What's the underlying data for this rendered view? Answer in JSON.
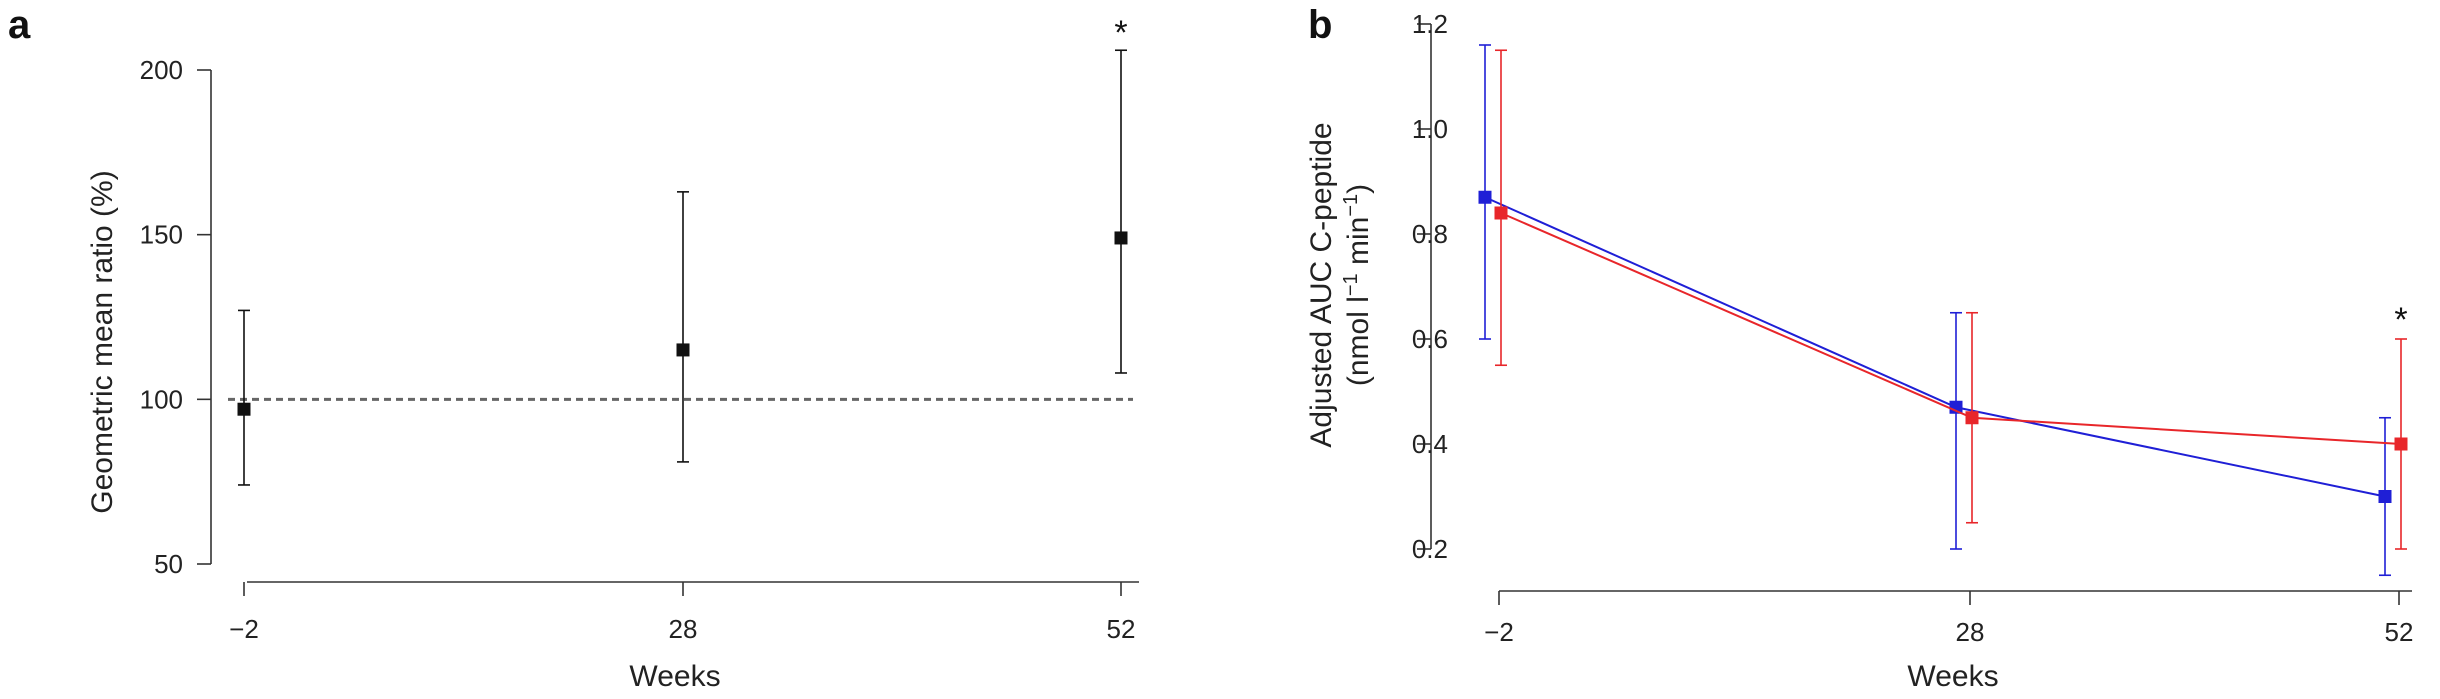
{
  "chart_data": [
    {
      "panel_label": "a",
      "type": "scatter",
      "xlabel": "Weeks",
      "ylabel": "Geometric mean ratio (%)",
      "x_categories": [
        "−2",
        "28",
        "52"
      ],
      "yticks": [
        "50",
        "100",
        "150",
        "200"
      ],
      "ylim": [
        50,
        200
      ],
      "reference_line": 100,
      "color": "#111111",
      "points": [
        {
          "x": "−2",
          "y": 97,
          "low": 74,
          "high": 127,
          "sig": ""
        },
        {
          "x": "28",
          "y": 115,
          "low": 81,
          "high": 163,
          "sig": ""
        },
        {
          "x": "52",
          "y": 149,
          "low": 108,
          "high": 206,
          "sig": "*"
        }
      ]
    },
    {
      "panel_label": "b",
      "type": "line",
      "xlabel": "Weeks",
      "ylabel_line1": "Adjusted AUC C-peptide",
      "ylabel_line2": {
        "prefix": "(nmol l",
        "exp1": "−1",
        "mid": " min",
        "exp2": "−1",
        "suffix": ")"
      },
      "x_categories": [
        "−2",
        "28",
        "52"
      ],
      "yticks": [
        "0.2",
        "0.4",
        "0.6",
        "0.8",
        "1.0",
        "1.2"
      ],
      "ylim": [
        0.2,
        1.2
      ],
      "series": [
        {
          "color": "#1f1fd6",
          "points": [
            {
              "x": "−2",
              "y": 0.87,
              "low": 0.6,
              "high": 1.16
            },
            {
              "x": "28",
              "y": 0.47,
              "low": 0.2,
              "high": 0.65
            },
            {
              "x": "52",
              "y": 0.3,
              "low": 0.15,
              "high": 0.45
            }
          ]
        },
        {
          "color": "#e8262a",
          "points": [
            {
              "x": "−2",
              "y": 0.84,
              "low": 0.55,
              "high": 1.15
            },
            {
              "x": "28",
              "y": 0.45,
              "low": 0.25,
              "high": 0.65
            },
            {
              "x": "52",
              "y": 0.4,
              "low": 0.2,
              "high": 0.6,
              "sig": "*"
            }
          ]
        }
      ]
    }
  ]
}
